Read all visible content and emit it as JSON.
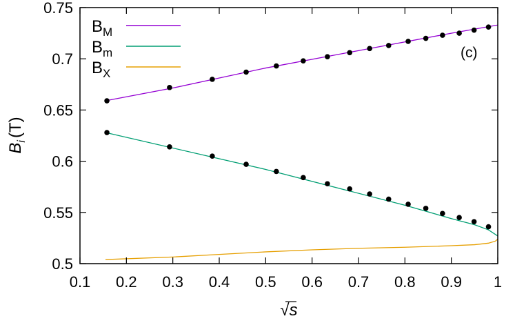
{
  "chart_data": {
    "type": "line",
    "xlabel": "√s",
    "ylabel": "B_i (T)",
    "ylabel_parts": {
      "main": "B",
      "sub": "i",
      "unit": "(T)"
    },
    "annotation": "(c)",
    "xlim": [
      0.1,
      1.0
    ],
    "ylim": [
      0.5,
      0.75
    ],
    "xticks": [
      "0.1",
      "0.2",
      "0.3",
      "0.4",
      "0.5",
      "0.6",
      "0.7",
      "0.8",
      "0.9",
      "1"
    ],
    "yticks": [
      "0.5",
      "0.55",
      "0.6",
      "0.65",
      "0.7",
      "0.75"
    ],
    "grid": false,
    "legend_position": "top-left",
    "series": [
      {
        "name": "B_M",
        "label_main": "B",
        "label_sub": "M",
        "color": "#9400d3",
        "line": [
          [
            0.155,
            0.659
          ],
          [
            0.3,
            0.6715
          ],
          [
            0.5,
            0.691
          ],
          [
            0.7,
            0.708
          ],
          [
            0.9,
            0.725
          ],
          [
            1.0,
            0.733
          ]
        ]
      },
      {
        "name": "B_m",
        "label_main": "B",
        "label_sub": "m",
        "color": "#009e73",
        "line": [
          [
            0.155,
            0.628
          ],
          [
            0.5,
            0.592
          ],
          [
            0.8,
            0.557
          ],
          [
            0.9,
            0.544
          ],
          [
            0.95,
            0.538
          ],
          [
            0.98,
            0.533
          ],
          [
            1.0,
            0.527
          ]
        ]
      },
      {
        "name": "B_X",
        "label_main": "B",
        "label_sub": "X",
        "color": "#e69f00",
        "line": [
          [
            0.155,
            0.504
          ],
          [
            0.3,
            0.5065
          ],
          [
            0.4,
            0.509
          ],
          [
            0.5,
            0.5115
          ],
          [
            0.6,
            0.5135
          ],
          [
            0.7,
            0.515
          ],
          [
            0.8,
            0.516
          ],
          [
            0.9,
            0.5175
          ],
          [
            0.95,
            0.5185
          ],
          [
            0.98,
            0.52
          ],
          [
            0.995,
            0.522
          ],
          [
            1.0,
            0.524
          ]
        ]
      }
    ],
    "points": [
      {
        "series": "B_M",
        "x": [
          0.158,
          0.293,
          0.385,
          0.458,
          0.523,
          0.581,
          0.633,
          0.681,
          0.724,
          0.765,
          0.807,
          0.845,
          0.881,
          0.917,
          0.949,
          0.98
        ],
        "y": [
          0.659,
          0.672,
          0.68,
          0.687,
          0.693,
          0.698,
          0.702,
          0.706,
          0.71,
          0.713,
          0.717,
          0.72,
          0.723,
          0.725,
          0.728,
          0.731
        ]
      },
      {
        "series": "B_m",
        "x": [
          0.158,
          0.293,
          0.385,
          0.458,
          0.523,
          0.581,
          0.633,
          0.681,
          0.724,
          0.765,
          0.807,
          0.845,
          0.881,
          0.917,
          0.949,
          0.98
        ],
        "y": [
          0.628,
          0.614,
          0.605,
          0.597,
          0.59,
          0.584,
          0.578,
          0.573,
          0.568,
          0.563,
          0.558,
          0.554,
          0.549,
          0.545,
          0.541,
          0.536
        ]
      }
    ]
  }
}
